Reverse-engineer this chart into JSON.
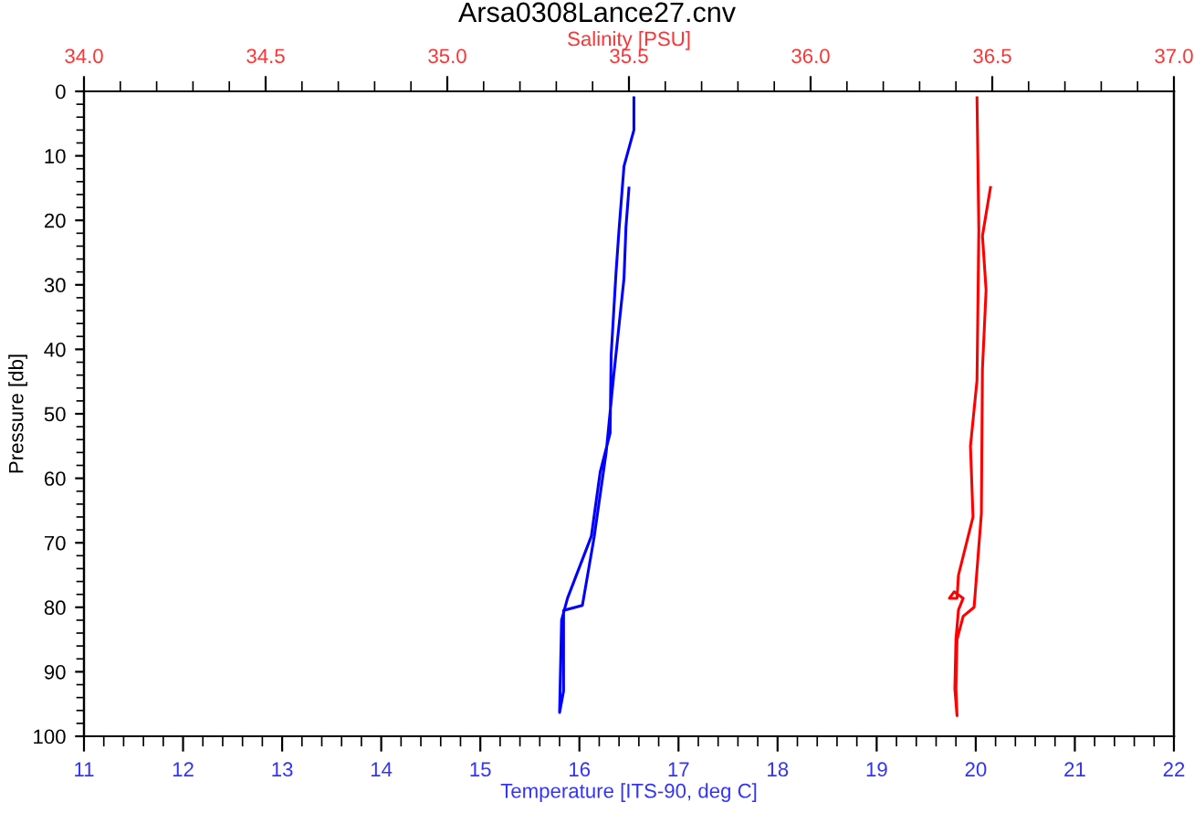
{
  "chart_data": {
    "type": "line",
    "title": "Arsa0308Lance27.cnv",
    "xlabel": "Temperature [ITS-90, deg C]",
    "x2label": "Salinity [PSU]",
    "ylabel": "Pressure [db]",
    "xlim": [
      11,
      22
    ],
    "xticks": [
      11,
      12,
      13,
      14,
      15,
      16,
      17,
      18,
      19,
      20,
      21,
      22
    ],
    "x2lim": [
      34,
      37
    ],
    "x2ticks": [
      {
        "value": 34,
        "label": "34.0"
      },
      {
        "value": 34.5,
        "label": "34.5"
      },
      {
        "value": 35,
        "label": "35.0"
      },
      {
        "value": 35.5,
        "label": "35.5"
      },
      {
        "value": 36,
        "label": "36.0"
      },
      {
        "value": 36.5,
        "label": "36.5"
      },
      {
        "value": 37,
        "label": "37.0"
      }
    ],
    "ylim": [
      100,
      0
    ],
    "yticks": [
      0,
      10,
      20,
      30,
      40,
      50,
      60,
      70,
      80,
      90,
      100
    ],
    "grid": false,
    "marker": "none",
    "line_style": "solid",
    "series": [
      {
        "color": "#0000ff",
        "x": [
          16.55,
          16.55,
          16.45,
          16.4,
          16.37,
          16.32,
          16.31,
          16.21,
          16.12,
          15.88,
          15.82,
          15.8,
          15.84,
          15.84,
          16.03,
          16.15,
          16.27,
          16.34,
          16.45,
          16.47,
          16.5
        ],
        "values": [
          1,
          6,
          11.6,
          21.4,
          28,
          41,
          53,
          59,
          69,
          78.6,
          82,
          96.3,
          93,
          80.5,
          79.7,
          69,
          56,
          45,
          29,
          21,
          15
        ]
      },
      {
        "color": "#ff0000",
        "axis": "x2",
        "x": [
          36.458,
          36.463,
          36.458,
          36.44,
          36.447,
          36.407,
          36.403,
          36.382,
          36.395,
          36.42,
          36.407,
          36.4,
          36.397,
          36.403,
          36.4,
          36.403,
          36.42,
          36.45,
          36.47,
          36.473,
          36.483,
          36.473,
          36.495
        ],
        "values": [
          1,
          21.4,
          44.8,
          55,
          66,
          75,
          78.6,
          78.6,
          77.6,
          78.6,
          80.4,
          85,
          92.6,
          96.8,
          92.6,
          85,
          81.4,
          80,
          65.5,
          43,
          30.8,
          22.4,
          14.9
        ]
      }
    ]
  }
}
